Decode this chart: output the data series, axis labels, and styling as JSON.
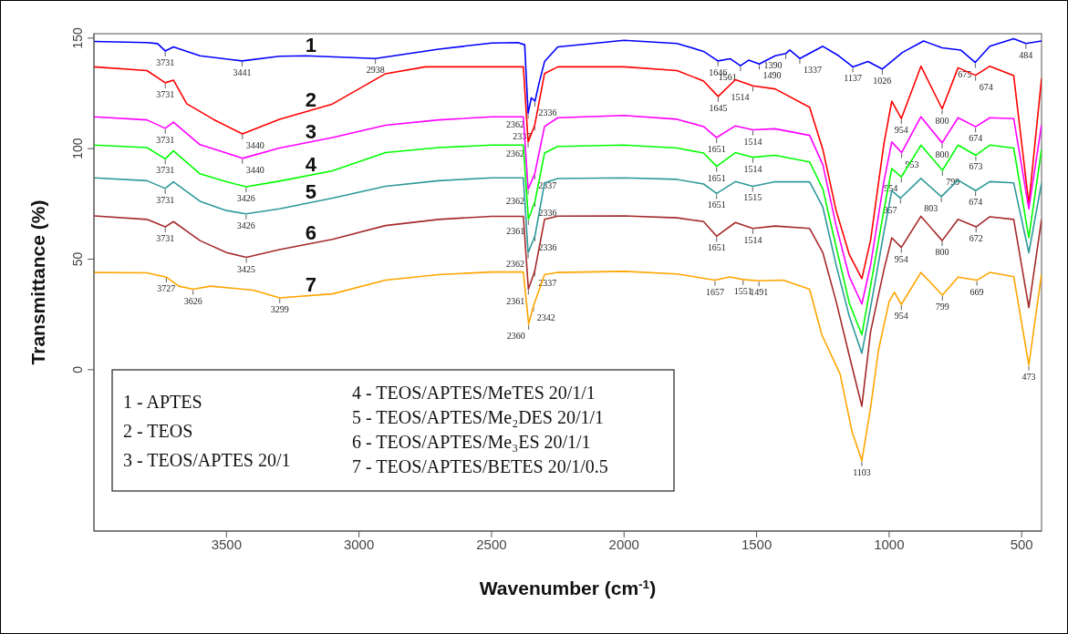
{
  "chart_data": {
    "type": "line",
    "xlabel": "Wavenumber (cm$^{-1}$)",
    "ylabel": "Transmittance (%)",
    "xlim": [
      4000,
      425
    ],
    "ylim": [
      -73,
      152
    ],
    "xticks": [
      3500,
      3000,
      2500,
      2000,
      1500,
      1000,
      500
    ],
    "yticks": [
      0,
      50,
      100,
      150
    ],
    "series": [
      {
        "name": "1",
        "color": "#0000ff",
        "x": [
          4000,
          3800,
          3760,
          3731,
          3700,
          3600,
          3441,
          3300,
          3200,
          2938,
          2700,
          2500,
          2400,
          2375,
          2362,
          2350,
          2336,
          2320,
          2300,
          2250,
          2000,
          1800,
          1700,
          1646,
          1600,
          1561,
          1530,
          1490,
          1430,
          1390,
          1375,
          1337,
          1250,
          1190,
          1137,
          1080,
          1026,
          950,
          870,
          800,
          730,
          675,
          620,
          530,
          484,
          425
        ],
        "values": [
          148.5,
          148,
          147.5,
          144.2,
          146,
          142,
          139.7,
          141.8,
          142,
          140.8,
          145,
          147.8,
          148,
          147,
          116,
          123,
          121.5,
          130,
          139.4,
          146,
          149,
          147.6,
          144,
          139.7,
          140.7,
          137.5,
          140,
          138.3,
          142,
          143,
          144.6,
          140.8,
          146.3,
          142,
          137,
          139.4,
          136,
          143.5,
          148.7,
          145.6,
          144.6,
          139,
          146.3,
          149.7,
          147.6,
          148.7
        ]
      },
      {
        "name": "2",
        "color": "#ff0000",
        "x": [
          4000,
          3800,
          3731,
          3700,
          3650,
          3550,
          3440,
          3300,
          3100,
          2900,
          2750,
          2500,
          2380,
          2362,
          2337,
          2300,
          2250,
          2000,
          1800,
          1700,
          1645,
          1580,
          1514,
          1430,
          1300,
          1250,
          1200,
          1150,
          1103,
          1070,
          1020,
          990,
          954,
          880,
          800,
          740,
          674,
          620,
          530,
          473,
          425
        ],
        "values": [
          137,
          135.3,
          129.8,
          131,
          120.3,
          113.3,
          106.7,
          113.3,
          120.2,
          133.9,
          137,
          137,
          137,
          103,
          110.6,
          134,
          137,
          137,
          135.3,
          130.6,
          123.6,
          131.2,
          128.4,
          127,
          118.7,
          99.6,
          72,
          52,
          41.2,
          58.5,
          102,
          121.5,
          113.6,
          137.3,
          118,
          136.6,
          133.2,
          137.3,
          133,
          75,
          131.8
        ]
      },
      {
        "name": "3",
        "color": "#ff00ff",
        "x": [
          4000,
          3800,
          3731,
          3700,
          3600,
          3500,
          3440,
          3300,
          3100,
          2900,
          2700,
          2500,
          2380,
          2362,
          2337,
          2300,
          2250,
          2000,
          1800,
          1700,
          1651,
          1580,
          1514,
          1430,
          1300,
          1250,
          1200,
          1150,
          1103,
          1070,
          1020,
          990,
          953,
          880,
          800,
          740,
          674,
          620,
          530,
          473,
          425
        ],
        "values": [
          114.4,
          113,
          109.2,
          112,
          101.8,
          98,
          95.6,
          100.3,
          105,
          110.6,
          113,
          114.4,
          114.4,
          81.7,
          88.6,
          110,
          114,
          115,
          113.3,
          110,
          105,
          110.3,
          108.5,
          109,
          106,
          92.7,
          65.2,
          42,
          29.7,
          47.4,
          85,
          103,
          98.2,
          114.4,
          102.6,
          114,
          109.9,
          114,
          113.6,
          72.8,
          110.8
        ]
      },
      {
        "name": "4",
        "color": "#00ff00",
        "x": [
          4000,
          3800,
          3731,
          3700,
          3600,
          3500,
          3426,
          3300,
          3100,
          2900,
          2700,
          2500,
          2380,
          2361,
          2336,
          2300,
          2250,
          2000,
          1800,
          1700,
          1651,
          1580,
          1514,
          1430,
          1300,
          1250,
          1200,
          1150,
          1103,
          1070,
          1020,
          990,
          954,
          880,
          799,
          740,
          673,
          620,
          530,
          473,
          425
        ],
        "values": [
          101.6,
          100.5,
          95.4,
          99,
          88.6,
          85,
          82.8,
          85.3,
          90,
          98.2,
          100.5,
          101.6,
          101.6,
          68,
          76.2,
          98,
          101,
          101.6,
          100.3,
          98,
          92,
          98.2,
          96.1,
          97,
          94,
          81.7,
          55.6,
          30,
          15.8,
          37.8,
          72,
          91,
          87.2,
          101.6,
          90.2,
          101.6,
          97,
          101.6,
          100.3,
          59.7,
          99.8
        ]
      },
      {
        "name": "5",
        "color": "#2e9999",
        "x": [
          4000,
          3800,
          3731,
          3700,
          3600,
          3500,
          3426,
          3300,
          3100,
          2900,
          2700,
          2500,
          2380,
          2362,
          2336,
          2300,
          2250,
          2000,
          1800,
          1700,
          1651,
          1580,
          1515,
          1430,
          1300,
          1250,
          1200,
          1150,
          1103,
          1070,
          1020,
          990,
          957,
          880,
          803,
          740,
          674,
          620,
          530,
          473,
          425
        ],
        "values": [
          86.8,
          85.5,
          82,
          85,
          76.2,
          72,
          70.5,
          72.8,
          77.6,
          83,
          85.5,
          86.8,
          86.8,
          52.9,
          60.6,
          84.5,
          86.5,
          86.8,
          86.1,
          84,
          79.7,
          85.1,
          83,
          85,
          85,
          73.5,
          47.4,
          24,
          7.5,
          28.1,
          62,
          81,
          77.6,
          86.5,
          78.3,
          85.8,
          81,
          85.1,
          84.5,
          52.9,
          84.5
        ]
      },
      {
        "name": "6",
        "color": "#a52a2a",
        "x": [
          4000,
          3800,
          3731,
          3700,
          3600,
          3500,
          3425,
          3300,
          3100,
          2900,
          2700,
          2500,
          2380,
          2361,
          2337,
          2300,
          2250,
          2000,
          1800,
          1700,
          1651,
          1580,
          1514,
          1430,
          1300,
          1250,
          1200,
          1150,
          1103,
          1070,
          1020,
          990,
          954,
          880,
          800,
          740,
          672,
          620,
          530,
          473,
          425
        ],
        "values": [
          69.6,
          68,
          64.6,
          67,
          58.4,
          53,
          50.8,
          54.3,
          59,
          65.2,
          68,
          69.4,
          69.4,
          36.4,
          44.6,
          68,
          69.5,
          69.6,
          68.7,
          67,
          60.4,
          66.6,
          63.9,
          65,
          63.9,
          52.9,
          30.9,
          6.2,
          -16.5,
          17.2,
          45,
          59.7,
          55.3,
          69.4,
          58.4,
          68,
          64.6,
          69.2,
          68,
          28.1,
          68
        ]
      },
      {
        "name": "7",
        "color": "#ffa500",
        "x": [
          4000,
          3800,
          3727,
          3680,
          3626,
          3560,
          3400,
          3299,
          3100,
          2900,
          2700,
          2500,
          2380,
          2360,
          2342,
          2300,
          2250,
          2000,
          1800,
          1657,
          1600,
          1551,
          1491,
          1400,
          1300,
          1254,
          1185,
          1140,
          1103,
          1070,
          1040,
          1000,
          980,
          954,
          880,
          799,
          740,
          669,
          620,
          530,
          473,
          425
        ],
        "values": [
          44,
          43.8,
          41.9,
          37.8,
          36.4,
          37.8,
          36,
          32.5,
          34.3,
          40.5,
          43,
          44.2,
          44.2,
          20.6,
          28.8,
          43,
          44,
          44.5,
          43.3,
          40.5,
          42,
          40.8,
          40.2,
          40.5,
          36.4,
          15.8,
          -2,
          -28,
          -41.2,
          -17.2,
          9,
          30.9,
          35,
          29.5,
          44,
          33.7,
          41.9,
          40.5,
          44,
          42.1,
          2.1,
          43.3
        ]
      }
    ],
    "annotations": [
      "1 - APTES",
      "2 - TEOS",
      "3 - TEOS/APTES 20/1",
      "4 - TEOS/APTES/MeTES 20/1/1",
      "5 - TEOS/APTES/Me₂DES 20/1/1",
      "6 - TEOS/APTES/Me₃ES 20/1/1",
      "7 - TEOS/APTES/BETES 20/1/0.5",
      {
        "text": "3731",
        "x": 3731,
        "y": 144.2
      },
      {
        "text": "3441",
        "x": 3441,
        "y": 139.7
      },
      {
        "text": "2938",
        "x": 2938,
        "y": 140.8
      },
      {
        "text": "2362",
        "x": 2362,
        "y": 116
      },
      {
        "text": "2336",
        "x": 2336,
        "y": 121.5
      },
      {
        "text": "1646",
        "x": 1646,
        "y": 139.7
      },
      {
        "text": "1561",
        "x": 1561,
        "y": 137.5
      },
      {
        "text": "1490",
        "x": 1490,
        "y": 138.3
      },
      {
        "text": "1390",
        "x": 1390,
        "y": 143
      },
      {
        "text": "1337",
        "x": 1337,
        "y": 140.8
      },
      {
        "text": "1137",
        "x": 1137,
        "y": 137
      },
      {
        "text": "1026",
        "x": 1026,
        "y": 136
      },
      {
        "text": "675",
        "x": 675,
        "y": 139
      },
      {
        "text": "484",
        "x": 484,
        "y": 147.6
      },
      {
        "text": "3731",
        "x": 3731,
        "y": 129.8
      },
      {
        "text": "3440",
        "x": 3440,
        "y": 106.7
      },
      {
        "text": "2362",
        "x": 2362,
        "y": 103
      },
      {
        "text": "2337",
        "x": 2337,
        "y": 110.6
      },
      {
        "text": "1645",
        "x": 1645,
        "y": 123.6
      },
      {
        "text": "1514",
        "x": 1514,
        "y": 128.4
      },
      {
        "text": "954",
        "x": 954,
        "y": 113.6
      },
      {
        "text": "800",
        "x": 800,
        "y": 118
      },
      {
        "text": "674",
        "x": 674,
        "y": 133.2
      },
      {
        "text": "3731",
        "x": 3731,
        "y": 109.2
      },
      {
        "text": "3440",
        "x": 3440,
        "y": 95.6
      },
      {
        "text": "2362",
        "x": 2362,
        "y": 81.7
      },
      {
        "text": "2337",
        "x": 2337,
        "y": 88.6
      },
      {
        "text": "1651",
        "x": 1651,
        "y": 105
      },
      {
        "text": "1514",
        "x": 1514,
        "y": 108.5
      },
      {
        "text": "953",
        "x": 953,
        "y": 98.2
      },
      {
        "text": "800",
        "x": 800,
        "y": 102.6
      },
      {
        "text": "674",
        "x": 674,
        "y": 109.9
      },
      {
        "text": "3731",
        "x": 3731,
        "y": 95.4
      },
      {
        "text": "3426",
        "x": 3426,
        "y": 82.8
      },
      {
        "text": "2361",
        "x": 2361,
        "y": 68
      },
      {
        "text": "2336",
        "x": 2336,
        "y": 76.2
      },
      {
        "text": "1651",
        "x": 1651,
        "y": 92
      },
      {
        "text": "1514",
        "x": 1514,
        "y": 96.1
      },
      {
        "text": "954",
        "x": 954,
        "y": 87.2
      },
      {
        "text": "799",
        "x": 799,
        "y": 90.2
      },
      {
        "text": "673",
        "x": 673,
        "y": 97
      },
      {
        "text": "3731",
        "x": 3731,
        "y": 82
      },
      {
        "text": "3426",
        "x": 3426,
        "y": 70.5
      },
      {
        "text": "2362",
        "x": 2362,
        "y": 52.9
      },
      {
        "text": "2336",
        "x": 2336,
        "y": 60.6
      },
      {
        "text": "1651",
        "x": 1651,
        "y": 79.7
      },
      {
        "text": "1515",
        "x": 1515,
        "y": 83
      },
      {
        "text": "957",
        "x": 957,
        "y": 77.6
      },
      {
        "text": "803",
        "x": 803,
        "y": 78.3
      },
      {
        "text": "674",
        "x": 674,
        "y": 81
      },
      {
        "text": "3731",
        "x": 3731,
        "y": 64.6
      },
      {
        "text": "3425",
        "x": 3425,
        "y": 50.8
      },
      {
        "text": "2361",
        "x": 2361,
        "y": 36.4
      },
      {
        "text": "2337",
        "x": 2337,
        "y": 44.6
      },
      {
        "text": "1651",
        "x": 1651,
        "y": 60.4
      },
      {
        "text": "1514",
        "x": 1514,
        "y": 63.9
      },
      {
        "text": "954",
        "x": 954,
        "y": 55.3
      },
      {
        "text": "800",
        "x": 800,
        "y": 58.4
      },
      {
        "text": "672",
        "x": 672,
        "y": 64.6
      },
      {
        "text": "3727",
        "x": 3727,
        "y": 41.9
      },
      {
        "text": "3626",
        "x": 3626,
        "y": 36.4
      },
      {
        "text": "3299",
        "x": 3299,
        "y": 32.5
      },
      {
        "text": "2360",
        "x": 2360,
        "y": 20.6
      },
      {
        "text": "2342",
        "x": 2342,
        "y": 28.8
      },
      {
        "text": "1657",
        "x": 1657,
        "y": 40.5
      },
      {
        "text": "1551",
        "x": 1551,
        "y": 40.8
      },
      {
        "text": "1491",
        "x": 1491,
        "y": 40.2
      },
      {
        "text": "1103",
        "x": 1103,
        "y": -41.2
      },
      {
        "text": "954",
        "x": 954,
        "y": 29.5
      },
      {
        "text": "799",
        "x": 799,
        "y": 33.7
      },
      {
        "text": "669",
        "x": 669,
        "y": 40.5
      },
      {
        "text": "473",
        "x": 473,
        "y": 2.1
      }
    ]
  }
}
